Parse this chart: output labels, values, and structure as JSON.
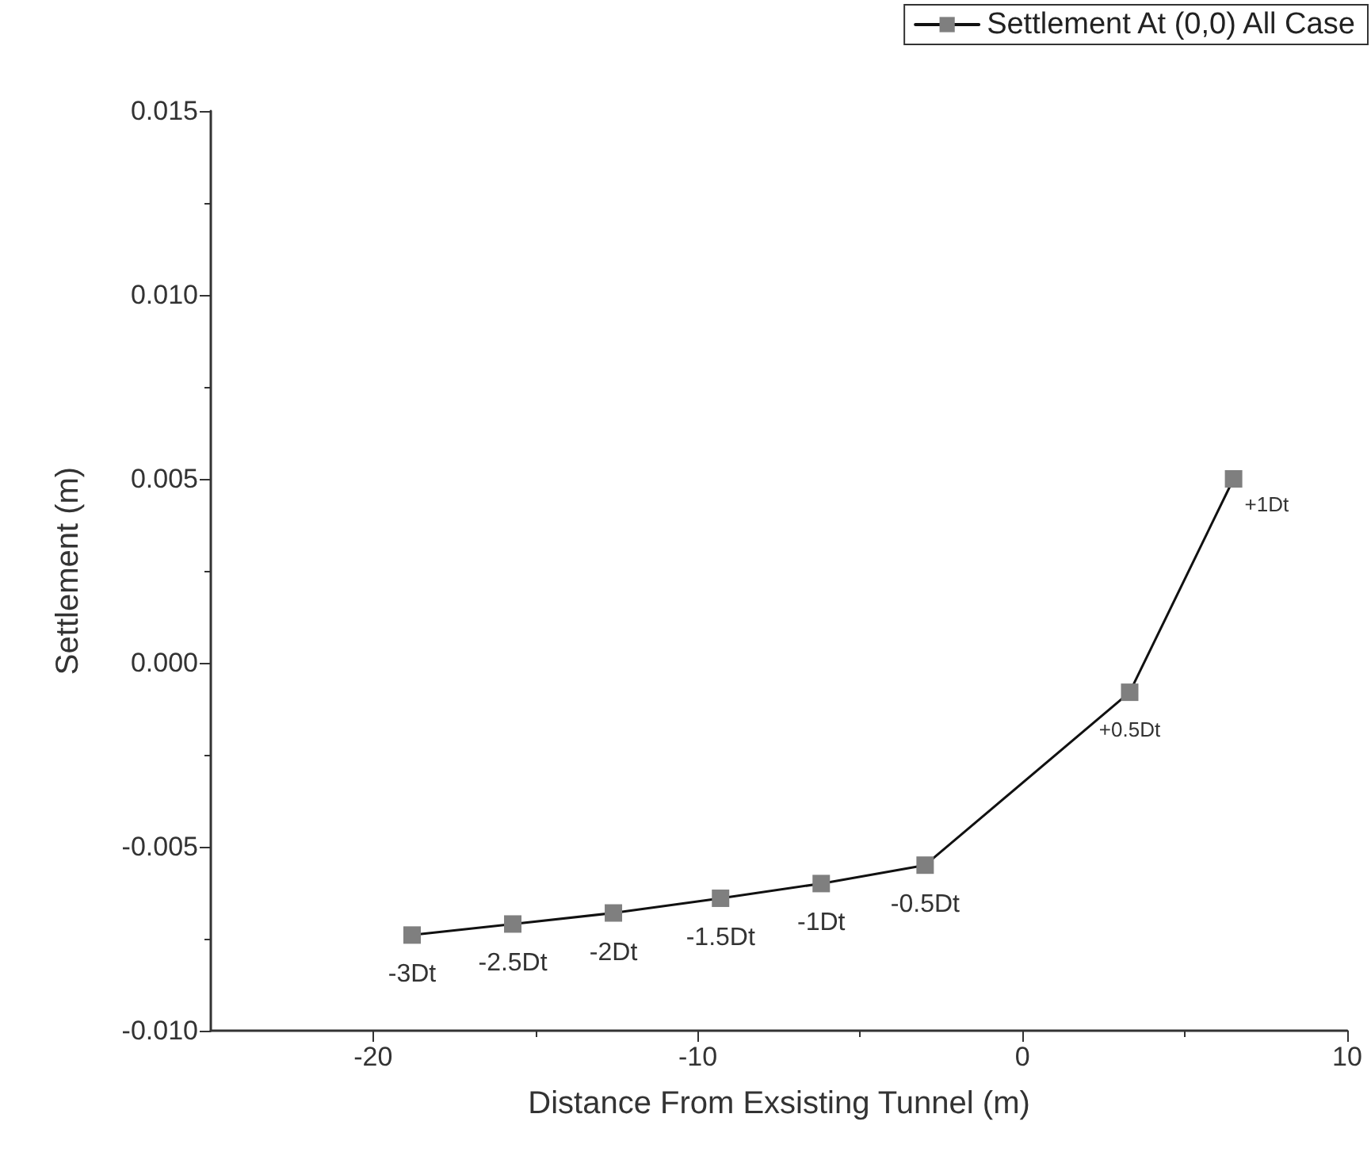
{
  "chart_data": {
    "type": "line",
    "xlabel": "Distance From Exsisting Tunnel (m)",
    "ylabel": "Settlement (m)",
    "x": [
      -18.8,
      -15.7,
      -12.6,
      -9.3,
      -6.2,
      -3.0,
      3.3,
      6.5
    ],
    "series": [
      {
        "name": "Settlement At (0,0) All Case",
        "color": "#7f7f7f",
        "values": [
          -0.0074,
          -0.0071,
          -0.0068,
          -0.0064,
          -0.006,
          -0.0055,
          -0.0008,
          0.005
        ]
      }
    ],
    "annotations": [
      {
        "text": "-3Dt",
        "x": -18.8,
        "y": -0.0074
      },
      {
        "text": "-2.5Dt",
        "x": -15.7,
        "y": -0.0071
      },
      {
        "text": "-2Dt",
        "x": -12.6,
        "y": -0.0068
      },
      {
        "text": "-1.5Dt",
        "x": -9.3,
        "y": -0.0064
      },
      {
        "text": "-1Dt",
        "x": -6.2,
        "y": -0.006
      },
      {
        "text": "-0.5Dt",
        "x": -3.0,
        "y": -0.0055
      },
      {
        "text": "+0.5Dt",
        "x": 3.3,
        "y": -0.0008
      },
      {
        "text": "+1Dt",
        "x": 6.5,
        "y": 0.005
      }
    ],
    "xlim": [
      -25,
      10
    ],
    "xticks": [
      -20,
      -10,
      0,
      10
    ],
    "ylim": [
      -0.01,
      0.015
    ],
    "yticks": [
      {
        "value": -0.01,
        "label": "-0.010"
      },
      {
        "value": -0.005,
        "label": "-0.005"
      },
      {
        "value": 0,
        "label": "0.000"
      },
      {
        "value": 0.005,
        "label": "0.005"
      },
      {
        "value": 0.01,
        "label": "0.010"
      },
      {
        "value": 0.015,
        "label": "0.015"
      }
    ],
    "marker": "square",
    "line_style": "solid",
    "legend": "top right",
    "grid": false
  }
}
